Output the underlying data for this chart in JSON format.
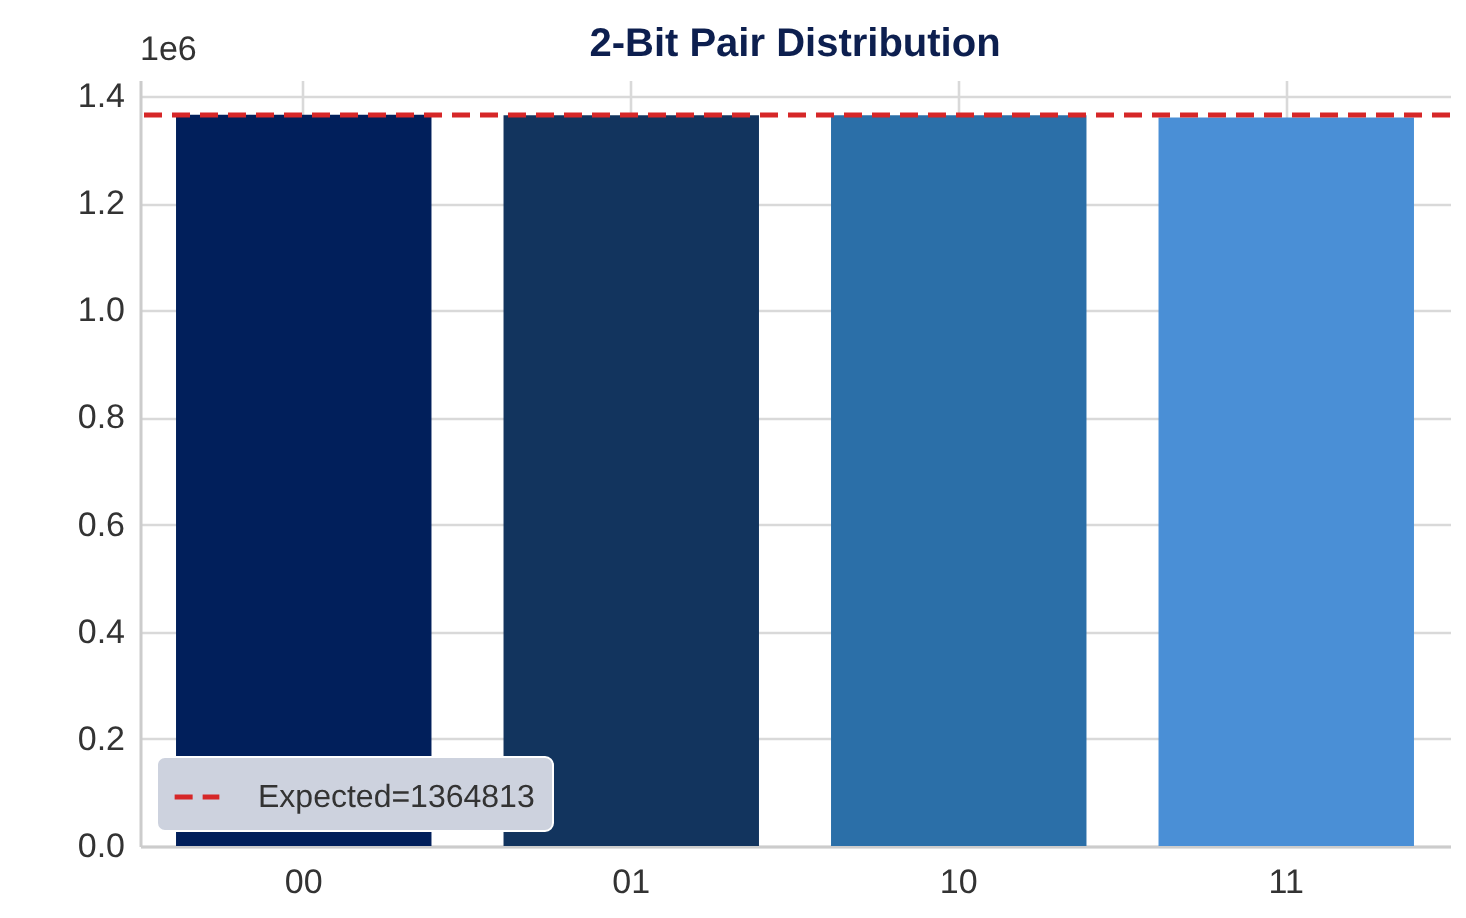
{
  "chart_data": {
    "type": "bar",
    "title": "2-Bit Pair Distribution",
    "categories": [
      "00",
      "01",
      "10",
      "11"
    ],
    "values": [
      1.365,
      1.364,
      1.364,
      1.36
    ],
    "colors": [
      "#011f5b",
      "#12345e",
      "#2b6fa8",
      "#4a8fd6"
    ],
    "ylim": [
      0,
      1.43
    ],
    "yticks": [
      {
        "value": 0,
        "label": "0.0"
      },
      0.2,
      0.4,
      0.6,
      0.8,
      {
        "value": 1,
        "label": "1.0"
      },
      1.2,
      1.4
    ],
    "annotations": [
      "1e6"
    ],
    "ref_lines": [
      {
        "axis": "y",
        "value": 1.364813,
        "label": "Expected=1364813",
        "color": "#d62728",
        "line_style": "dashed"
      }
    ],
    "grid": true,
    "legend": "bottom left"
  }
}
